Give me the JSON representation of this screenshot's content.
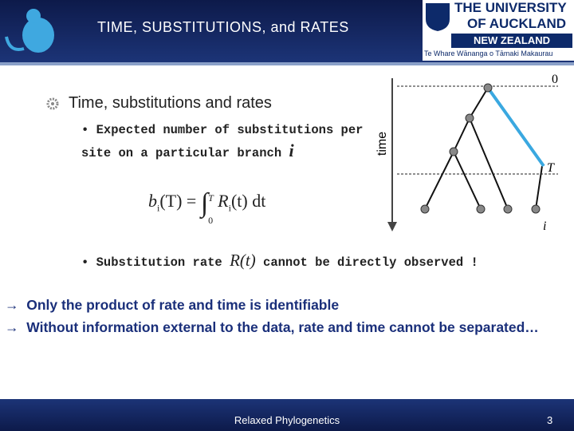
{
  "header": {
    "title": "TIME, SUBSTITUTIONS, and RATES",
    "logo": {
      "line1": "THE UNIVERSITY",
      "line2": "OF AUCKLAND",
      "line3": "NEW ZEALAND",
      "line4": "Te Whare Wānanga o Tāmaki Makaurau"
    }
  },
  "heading": "Time, substitutions and rates",
  "bullet1": {
    "text": "Expected number of substitutions per site on a particular branch",
    "branch": "i"
  },
  "formula": {
    "b": "b",
    "sub1": "i",
    "lhs": "(T) =",
    "integral": "∫",
    "upper": "T",
    "lower": "0",
    "r": "R",
    "sub2": "i",
    "rhs": "(t) dt"
  },
  "bullet2": {
    "before": "Substitution rate",
    "symbol": "R(t)",
    "after": "cannot be directly observed !"
  },
  "points": [
    {
      "arrow": "→",
      "text": "Only the product of rate and time is identifiable"
    },
    {
      "arrow": "→",
      "text": "Without information external to the data, rate and time cannot be separated…"
    }
  ],
  "diagram": {
    "axis": "time",
    "top": "0",
    "depth": "T",
    "branch": "i"
  },
  "footer": {
    "title": "Relaxed Phylogenetics",
    "page": "3"
  }
}
